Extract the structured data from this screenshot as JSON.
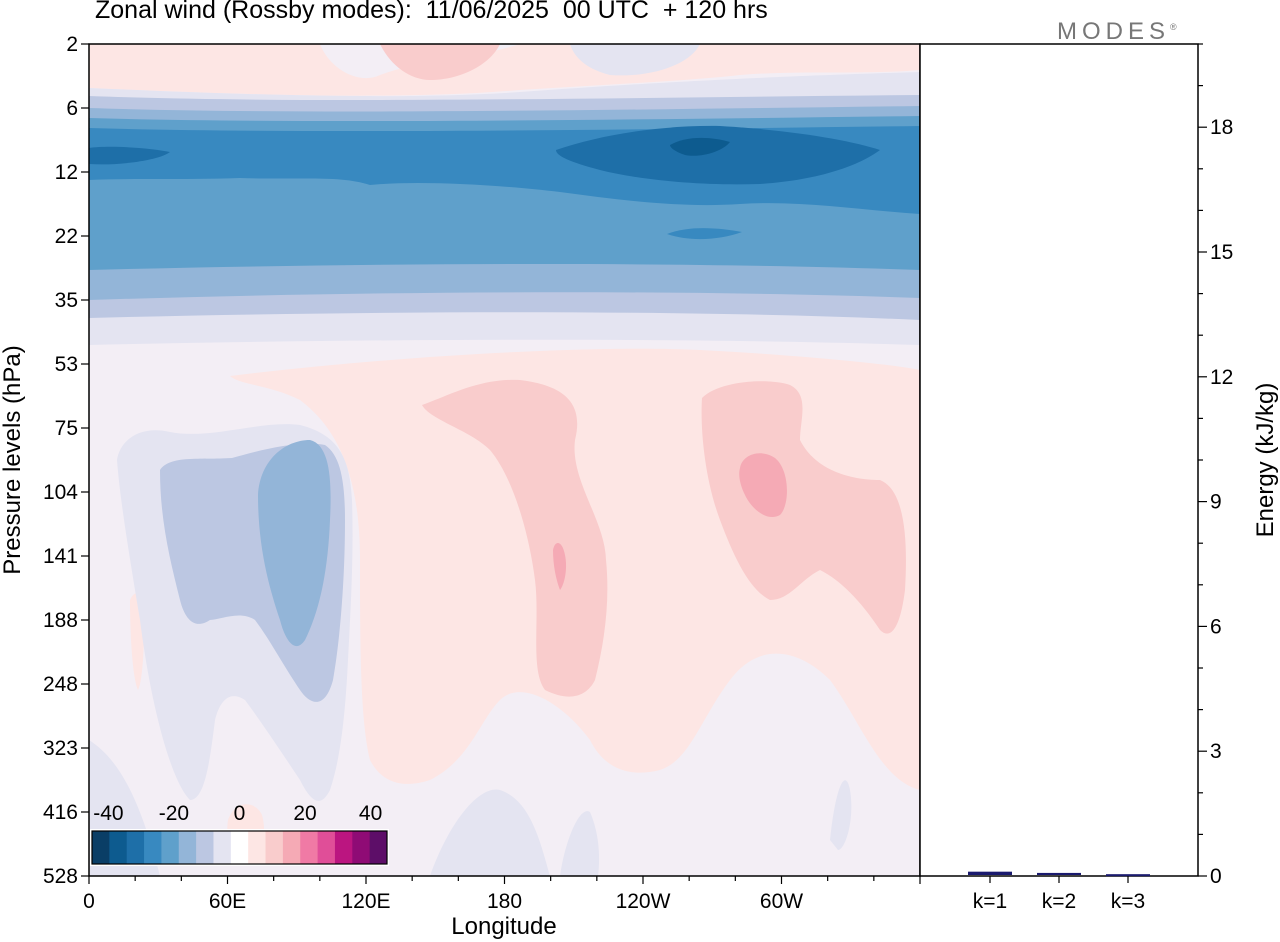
{
  "title": "Zonal wind (Rossby modes):  11/06/2025  00 UTC  + 120 hrs",
  "logo": "MODES",
  "logo_mark": "®",
  "colors": {
    "colorbar": [
      "#0a3e66",
      "#0d5b8f",
      "#1e6fa8",
      "#3889c0",
      "#5fa0cb",
      "#93b5d8",
      "#bcc7e2",
      "#e4e4f1",
      "#ffffff",
      "#fde6e4",
      "#f9cccc",
      "#f5aab5",
      "#f07aa5",
      "#e04e98",
      "#bb1580",
      "#8f0b75",
      "#5d0e68"
    ],
    "bars": "#1a1a6e"
  },
  "chart_data": [
    {
      "type": "heatmap",
      "title": "Zonal wind (Rossby modes):  11/06/2025  00 UTC  + 120 hrs",
      "xlabel": "Longitude",
      "ylabel": "Pressure levels (hPa)",
      "x_ticks": [
        "0",
        "60E",
        "120E",
        "180",
        "120W",
        "60W"
      ],
      "y_ticks": [
        "2",
        "6",
        "12",
        "22",
        "35",
        "53",
        "75",
        "104",
        "141",
        "188",
        "248",
        "323",
        "416",
        "528"
      ],
      "colorbar": {
        "ticks": [
          "-40",
          "-20",
          "0",
          "20",
          "40"
        ],
        "range": [
          -45,
          45
        ],
        "step": 5
      },
      "features": [
        {
          "region": "2–5 hPa, 0–360",
          "wind": "weak easterly/westerly, about -5 to +5"
        },
        {
          "region": "6–9 hPa, 0–360",
          "wind": "easterly, -15 to -25"
        },
        {
          "region": "8–20 hPa, 0–360",
          "wind": "easterly jet, -30 to -35, core near 110W at -40"
        },
        {
          "region": "20–35 hPa",
          "wind": "easterly, -15 to -25"
        },
        {
          "region": "75–250 hPa, 30E–120E",
          "wind": "easterly, -10 to -20"
        },
        {
          "region": "75–250 hPa, 160E–150W",
          "wind": "westerly, +5 to +15"
        },
        {
          "region": "75–200 hPa, 90W–30W",
          "wind": "westerly, +5 to +15"
        }
      ]
    },
    {
      "type": "bar",
      "categories": [
        "k=1",
        "k=2",
        "k=3"
      ],
      "values": [
        0.08,
        0.05,
        0.02
      ],
      "ylabel": "Energy (kJ/kg)",
      "y_ticks": [
        "0",
        "3",
        "6",
        "9",
        "12",
        "15",
        "18"
      ],
      "ylim": [
        0,
        20
      ]
    }
  ]
}
